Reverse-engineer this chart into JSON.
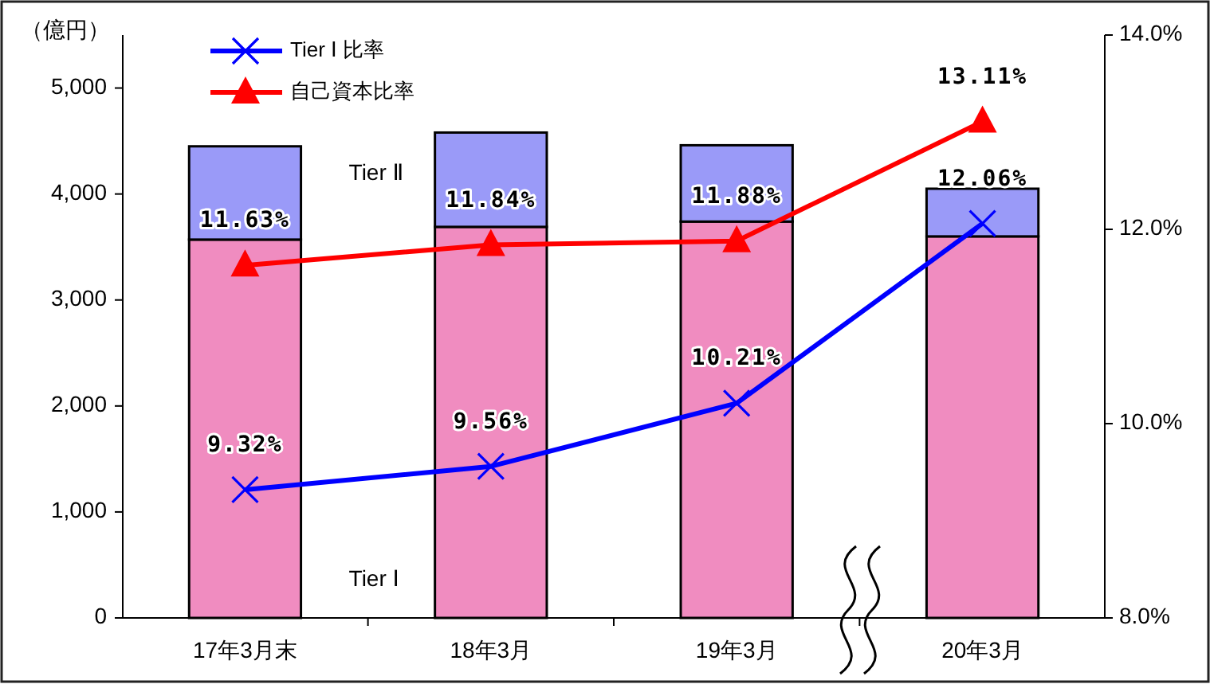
{
  "chart_data": {
    "type": "bar",
    "stacked": true,
    "ylabel": "（億円）",
    "categories": [
      "17年3月末",
      "18年3月",
      "19年3月",
      "20年3月"
    ],
    "series": [
      {
        "name": "Tier Ⅰ",
        "color": "#f08cc0",
        "values": [
          3570,
          3690,
          3740,
          3600
        ]
      },
      {
        "name": "Tier Ⅱ",
        "color": "#9a9af8",
        "values": [
          880,
          890,
          720,
          450
        ]
      },
      {
        "name": "Tier Ⅰ 比率",
        "type": "line",
        "axis": "y2",
        "color": "#0000ff",
        "marker": "cross",
        "values": [
          9.32,
          9.56,
          10.21,
          12.06
        ],
        "value_labels": [
          "9.32%",
          "9.56%",
          "10.21%",
          "12.06%"
        ]
      },
      {
        "name": "自己資本比率",
        "type": "line",
        "axis": "y2",
        "color": "#ff0000",
        "marker": "triangle",
        "values": [
          11.63,
          11.84,
          11.88,
          13.11
        ],
        "value_labels": [
          "11.63%",
          "11.84%",
          "11.88%",
          "13.11%"
        ]
      }
    ],
    "ylim": [
      0,
      5500
    ],
    "yticks": [
      0,
      {
        "value": 1000,
        "label": "1,000"
      },
      {
        "value": 2000,
        "label": "2,000"
      },
      {
        "value": 3000,
        "label": "3,000"
      },
      {
        "value": 4000,
        "label": "4,000"
      },
      {
        "value": 5000,
        "label": "5,000"
      }
    ],
    "y2lim": [
      8,
      14
    ],
    "y2ticks": [
      {
        "value": 8,
        "label": "8.0%"
      },
      {
        "value": 10,
        "label": "10.0%"
      },
      {
        "value": 12,
        "label": "12.0%"
      },
      {
        "value": 14,
        "label": "14.0%"
      }
    ],
    "legend": "top left",
    "grid": false,
    "line_style": "solid"
  }
}
